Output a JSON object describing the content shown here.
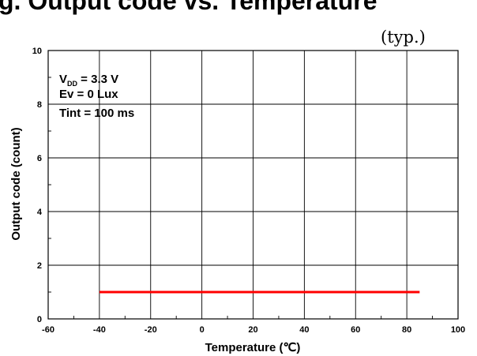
{
  "page_title_fragment": "g. Output code vs. Temperature",
  "typ_label": "(typ.)",
  "chart_data": {
    "type": "line",
    "title": "",
    "xlabel": "Temperature (℃)",
    "ylabel": "Output code (count)",
    "xlim": [
      -60,
      100
    ],
    "ylim": [
      0,
      10
    ],
    "x_ticks": [
      -60,
      -40,
      -20,
      0,
      20,
      40,
      60,
      80,
      100
    ],
    "y_ticks": [
      0,
      2,
      4,
      6,
      8,
      10
    ],
    "grid": true,
    "annotations": {
      "vdd_main": "V",
      "vdd_sub": "DD",
      "vdd_value": " = 3.3 V",
      "ev": "Ev = 0 Lux",
      "tint": "Tint = 100 ms"
    },
    "series": [
      {
        "x": [
          -40,
          85
        ],
        "y": [
          1,
          1
        ],
        "color": "#ff0000"
      }
    ]
  }
}
